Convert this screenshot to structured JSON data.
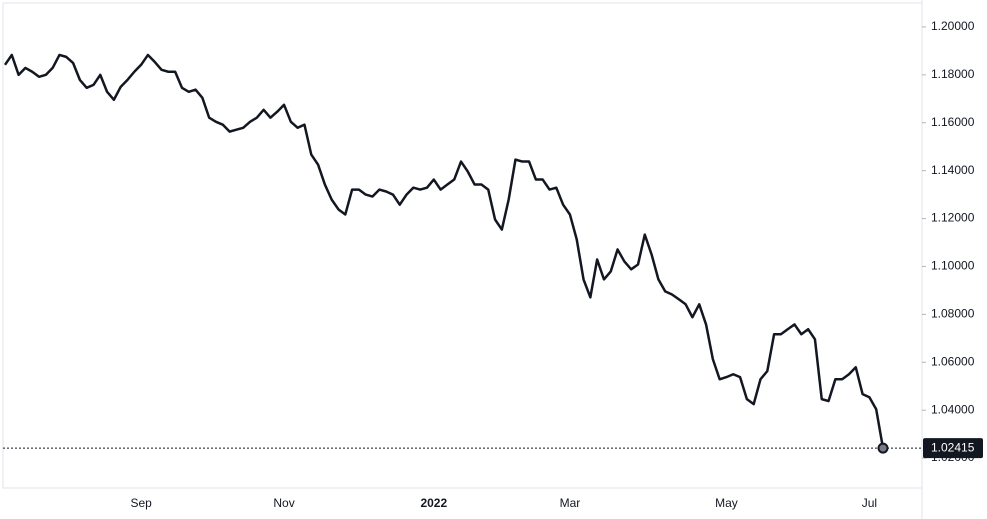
{
  "chart_data": {
    "type": "line",
    "color": "#131722",
    "categories": [
      null,
      null,
      null,
      null,
      null,
      null,
      null,
      null,
      null,
      null,
      null,
      null,
      null,
      null,
      null,
      null,
      null,
      null,
      null,
      null,
      "Sep",
      null,
      null,
      null,
      null,
      null,
      null,
      null,
      null,
      null,
      null,
      null,
      null,
      null,
      null,
      null,
      null,
      null,
      null,
      null,
      null,
      "Nov",
      null,
      null,
      null,
      null,
      null,
      null,
      null,
      null,
      null,
      null,
      null,
      null,
      null,
      null,
      null,
      null,
      null,
      null,
      null,
      null,
      null,
      "2022",
      null,
      null,
      null,
      null,
      null,
      null,
      null,
      null,
      null,
      null,
      null,
      null,
      null,
      null,
      null,
      null,
      null,
      null,
      null,
      "Mar",
      null,
      null,
      null,
      null,
      null,
      null,
      null,
      null,
      null,
      null,
      null,
      null,
      null,
      null,
      null,
      null,
      null,
      null,
      null,
      null,
      null,
      null,
      "May",
      null,
      null,
      null,
      null,
      null,
      null,
      null,
      null,
      null,
      null,
      null,
      null,
      null,
      null,
      null,
      null,
      null,
      null,
      null,
      null,
      "Jul",
      null,
      null
    ],
    "values": [
      1.1842,
      1.1883,
      1.18,
      1.1829,
      1.1813,
      1.1792,
      1.18,
      1.1829,
      1.1883,
      1.1875,
      1.185,
      1.1779,
      1.1746,
      1.1758,
      1.18,
      1.1729,
      1.1696,
      1.175,
      1.1779,
      1.1813,
      1.1842,
      1.1883,
      1.1854,
      1.1821,
      1.1813,
      1.1813,
      1.1746,
      1.1729,
      1.1738,
      1.1704,
      1.1621,
      1.1604,
      1.1592,
      1.1563,
      1.1571,
      1.1579,
      1.1604,
      1.1621,
      1.1654,
      1.1621,
      1.1646,
      1.1675,
      1.1604,
      1.1579,
      1.1592,
      1.1467,
      1.1425,
      1.1342,
      1.1279,
      1.1238,
      1.1217,
      1.1321,
      1.1321,
      1.13,
      1.1292,
      1.1321,
      1.1313,
      1.13,
      1.1258,
      1.13,
      1.1329,
      1.1321,
      1.1329,
      1.1363,
      1.1321,
      1.1342,
      1.1363,
      1.1438,
      1.1396,
      1.1342,
      1.1342,
      1.1321,
      1.1196,
      1.1154,
      1.1279,
      1.1446,
      1.1438,
      1.1438,
      1.1363,
      1.1363,
      1.1321,
      1.1329,
      1.1258,
      1.1217,
      1.1113,
      1.0946,
      1.0871,
      1.1029,
      1.0946,
      1.0979,
      1.1071,
      1.1021,
      1.0988,
      1.1008,
      1.1133,
      1.105,
      1.0946,
      1.0896,
      1.0883,
      1.0863,
      1.0842,
      1.0788,
      1.0842,
      1.0758,
      1.0613,
      1.0529,
      1.0538,
      1.055,
      1.0538,
      1.0446,
      1.0425,
      1.0529,
      1.0563,
      1.0717,
      1.0717,
      1.0738,
      1.0758,
      1.0717,
      1.0738,
      1.0696,
      1.0446,
      1.0438,
      1.0529,
      1.0529,
      1.055,
      1.0579,
      1.0467,
      1.0454,
      1.0404,
      1.02415
    ],
    "ylim": [
      1.0075,
      1.21
    ],
    "yticks": [
      {
        "value": 1.02,
        "label": "1.02000"
      },
      {
        "value": 1.04,
        "label": "1.04000"
      },
      {
        "value": 1.06,
        "label": "1.06000"
      },
      {
        "value": 1.08,
        "label": "1.08000"
      },
      {
        "value": 1.1,
        "label": "1.10000"
      },
      {
        "value": 1.12,
        "label": "1.12000"
      },
      {
        "value": 1.14,
        "label": "1.14000"
      },
      {
        "value": 1.16,
        "label": "1.16000"
      },
      {
        "value": 1.18,
        "label": "1.18000"
      },
      {
        "value": 1.2,
        "label": "1.20000"
      }
    ],
    "grid": false
  }
}
